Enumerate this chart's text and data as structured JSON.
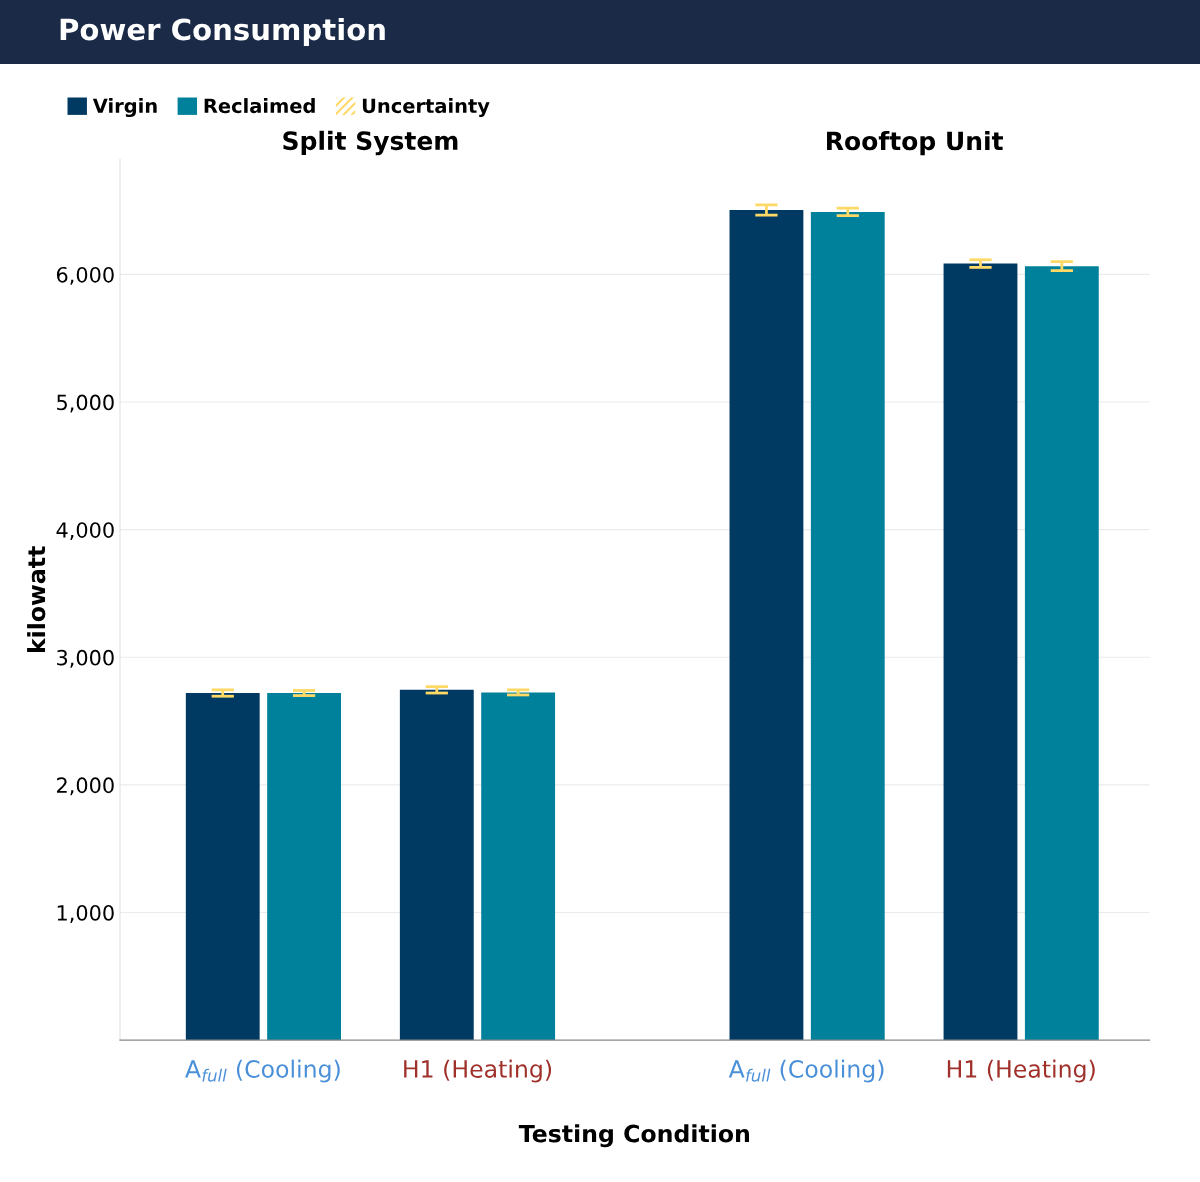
{
  "chart_data": {
    "type": "bar",
    "title": "Power Consumption",
    "categories": [
      "A$_{full}$ (Cooling)",
      "H1 (Heating)",
      "A$_{full}$ (Cooling)",
      "H1 (Heating)"
    ],
    "annotations": [
      "Split System",
      "Rooftop Unit"
    ],
    "xlabel": "Testing Condition",
    "ylabel": "kilowatt",
    "series": [
      {
        "name": "Virgin",
        "color": "#003a63",
        "values": [
          2720,
          2745,
          6505,
          6085
        ],
        "errors": [
          25,
          25,
          40,
          30
        ]
      },
      {
        "name": "Reclaimed",
        "color": "#00819b",
        "values": [
          2720,
          2725,
          6490,
          6065
        ],
        "errors": [
          20,
          20,
          30,
          35
        ]
      },
      {
        "name": "Uncertainty",
        "color": "#ffd966",
        "values": [
          null,
          null,
          null,
          null
        ]
      }
    ],
    "ylim": [
      0,
      6900
    ],
    "yticks": [
      {
        "value": 1000,
        "label": "1,000"
      },
      {
        "value": 2000,
        "label": "2,000"
      },
      {
        "value": 3000,
        "label": "3,000"
      },
      {
        "value": 4000,
        "label": "4,000"
      },
      {
        "value": 5000,
        "label": "5,000"
      },
      {
        "value": 6000,
        "label": "6,000"
      }
    ],
    "grid": "y",
    "legend": "top left"
  }
}
